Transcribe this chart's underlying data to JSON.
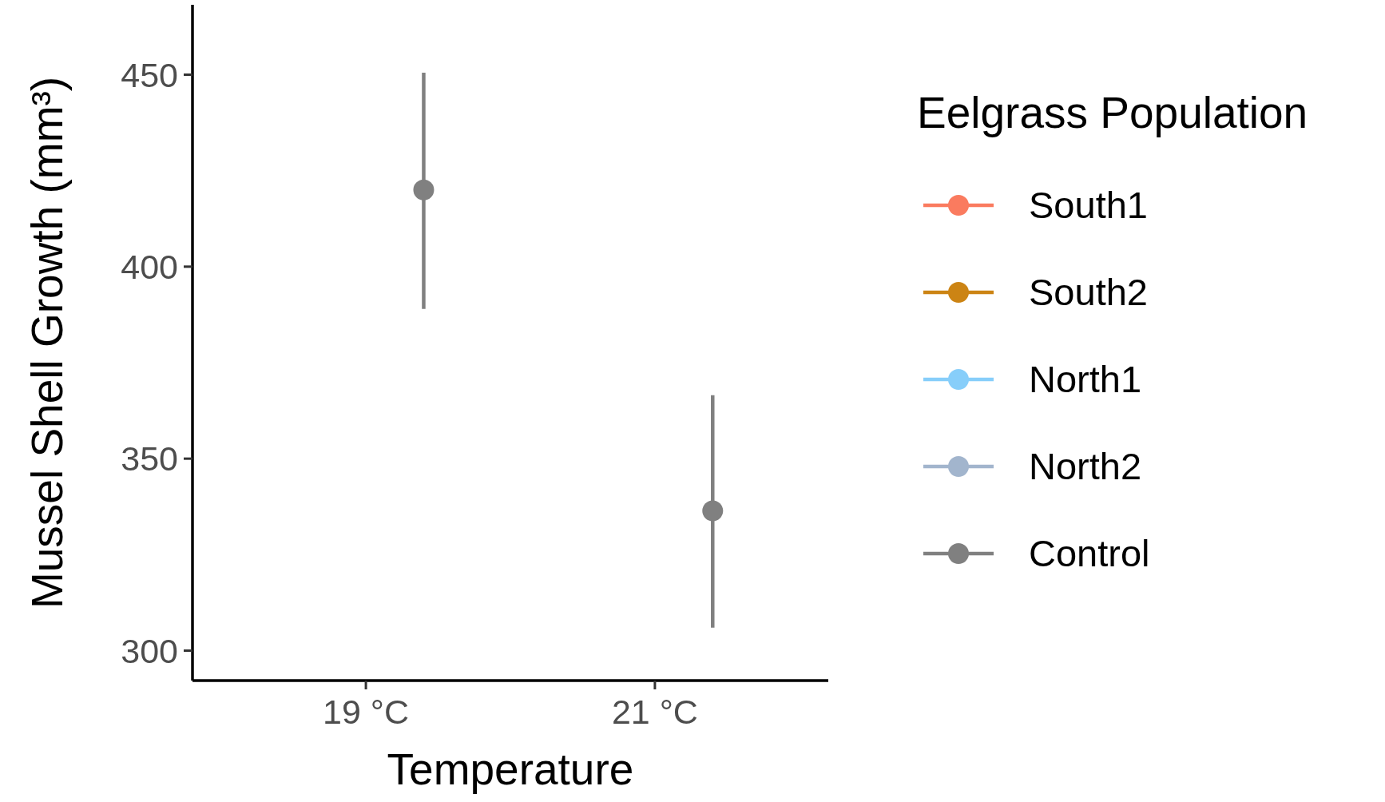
{
  "chart_data": {
    "type": "scatter",
    "xlabel": "Temperature",
    "ylabel": "Mussel Shell Growth (mm³)",
    "legend_title": "Eelgrass Population",
    "categories": [
      "19 °C",
      "21 °C"
    ],
    "series": [
      {
        "name": "South1",
        "color": "#fa7b5f",
        "values": [
          null,
          null
        ]
      },
      {
        "name": "South2",
        "color": "#cc8414",
        "values": [
          null,
          null
        ]
      },
      {
        "name": "North1",
        "color": "#87cefa",
        "values": [
          null,
          null
        ]
      },
      {
        "name": "North2",
        "color": "#a2b5cd",
        "values": [
          null,
          null
        ]
      },
      {
        "name": "Control",
        "color": "#808080",
        "values": [
          420,
          336.4
        ],
        "errors": [
          [
            389,
            450.5
          ],
          [
            306,
            366.5
          ]
        ]
      }
    ],
    "ylim": [
      292.2,
      468.2
    ],
    "yticks": [
      300,
      350,
      400,
      450
    ],
    "legend": "right",
    "marker": "circle",
    "grid": false
  }
}
